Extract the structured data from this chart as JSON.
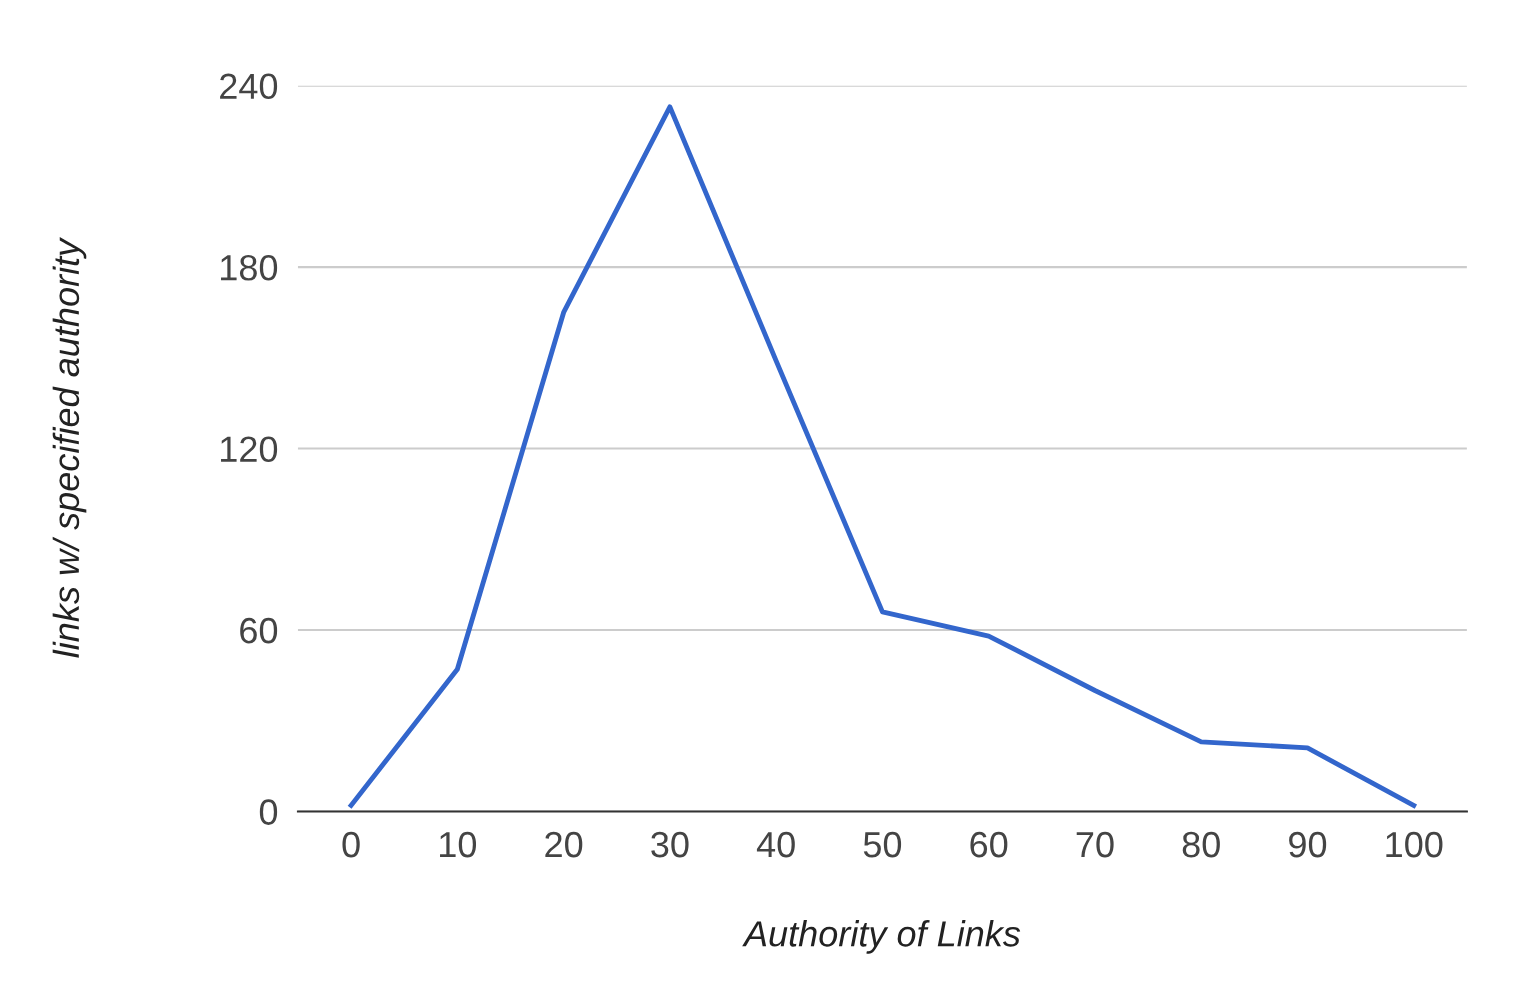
{
  "chart_data": {
    "type": "line",
    "xlabel": "Authority of Links",
    "ylabel": "links w/ specified authority",
    "categories": [
      "0",
      "10",
      "20",
      "30",
      "40",
      "50",
      "60",
      "70",
      "80",
      "90",
      "100"
    ],
    "series": [
      {
        "color": "#3366cc",
        "values": [
          2,
          47,
          165,
          233,
          149,
          66,
          58,
          40,
          23,
          21,
          2
        ]
      }
    ],
    "ylim": [
      0,
      240
    ],
    "yticks": [
      0,
      60,
      120,
      180,
      240
    ],
    "grid": "y",
    "legend": false,
    "marker": "none",
    "line_style": "solid"
  }
}
